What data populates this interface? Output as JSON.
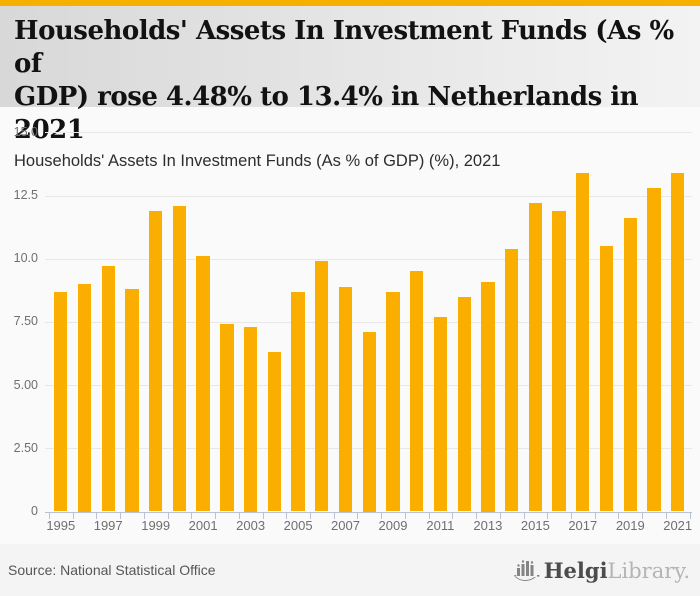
{
  "brand": {
    "top_bar_color": "#F5B000"
  },
  "header": {
    "title": "Households' Assets In Investment Funds (As % of GDP) rose 4.48% to 13.4% in Netherlands in 2021",
    "title_line1": "Households' Assets In Investment Funds (As % of",
    "title_line2": "GDP) rose 4.48% to 13.4% in Netherlands in 2021",
    "subtitle": "Households' Assets In Investment Funds (As % of GDP) (%), 2021"
  },
  "chart_data": {
    "type": "bar",
    "title": "Households' Assets In Investment Funds (As % of GDP) (%), 2021",
    "categories": [
      "1995",
      "1996",
      "1997",
      "1998",
      "1999",
      "2000",
      "2001",
      "2002",
      "2003",
      "2004",
      "2005",
      "2006",
      "2007",
      "2008",
      "2009",
      "2010",
      "2011",
      "2012",
      "2013",
      "2014",
      "2015",
      "2016",
      "2017",
      "2018",
      "2019",
      "2020",
      "2021"
    ],
    "values": [
      8.7,
      9.0,
      9.7,
      8.8,
      11.9,
      12.1,
      10.1,
      7.4,
      7.3,
      6.3,
      8.7,
      9.9,
      8.9,
      7.1,
      8.7,
      9.5,
      7.7,
      8.5,
      9.1,
      10.4,
      12.2,
      11.9,
      13.4,
      10.5,
      11.6,
      12.8,
      13.4
    ],
    "xlabel": "",
    "ylabel": "",
    "ylim": [
      0,
      15
    ],
    "grid": true,
    "legend_position": "none",
    "y_ticks": [
      {
        "value": 15,
        "label": "15.0"
      },
      {
        "value": 12.5,
        "label": "12.5"
      },
      {
        "value": 10,
        "label": "10.0"
      },
      {
        "value": 7.5,
        "label": "7.50"
      },
      {
        "value": 5,
        "label": "5.00"
      },
      {
        "value": 2.5,
        "label": "2.50"
      },
      {
        "value": 0,
        "label": "0"
      }
    ],
    "x_tick_labels": [
      "1995",
      "1997",
      "1999",
      "2001",
      "2003",
      "2005",
      "2007",
      "2009",
      "2011",
      "2013",
      "2015",
      "2017",
      "2019",
      "2021"
    ],
    "colors": {
      "bar": "#F9AE00",
      "grid": "#e8e8e8",
      "axis": "#b9c2d4",
      "tick_label": "#6f6f6f"
    }
  },
  "footer": {
    "source": "Source: National Statistical Office",
    "logo_primary": "Helgi",
    "logo_secondary": "Library."
  }
}
